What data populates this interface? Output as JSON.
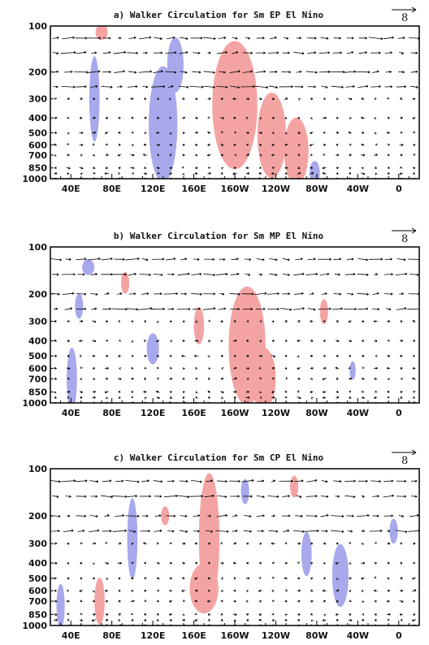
{
  "chart_data": [
    {
      "type": "vector-contour",
      "title": "a) Walker Circulation for Sm EP El Nino",
      "reference_vector": "8",
      "x_tick_labels": [
        "40E",
        "80E",
        "120E",
        "160E",
        "160W",
        "120W",
        "80W",
        "40W",
        "0"
      ],
      "x_tick_lon": [
        40,
        80,
        120,
        160,
        200,
        240,
        280,
        320,
        360
      ],
      "xlim": [
        20,
        380
      ],
      "y_tick_labels": [
        "100",
        "200",
        "300",
        "400",
        "500",
        "600",
        "700",
        "850",
        "1000"
      ],
      "y_tick_hpa": [
        100,
        200,
        300,
        400,
        500,
        600,
        700,
        850,
        1000
      ],
      "ylim": [
        100,
        1000
      ],
      "y_scale": "log",
      "shading": {
        "positive": [
          {
            "lon": 200,
            "p": 330,
            "wlon": 22,
            "wlogp": 0.42
          },
          {
            "lon": 236,
            "p": 520,
            "wlon": 14,
            "wlogp": 0.28
          },
          {
            "lon": 260,
            "p": 660,
            "wlon": 12,
            "wlogp": 0.22
          },
          {
            "lon": 70,
            "p": 110,
            "wlon": 6,
            "wlogp": 0.05
          }
        ],
        "negative": [
          {
            "lon": 130,
            "p": 440,
            "wlon": 14,
            "wlogp": 0.38
          },
          {
            "lon": 142,
            "p": 180,
            "wlon": 8,
            "wlogp": 0.18
          },
          {
            "lon": 63,
            "p": 300,
            "wlon": 5,
            "wlogp": 0.28
          },
          {
            "lon": 278,
            "p": 920,
            "wlon": 5,
            "wlogp": 0.08
          }
        ]
      },
      "colors": {
        "positive": "#f4a3a3",
        "negative": "#a8a8ec",
        "vectors": "#000000"
      }
    },
    {
      "type": "vector-contour",
      "title": "b) Walker Circulation for Sm MP El Nino",
      "reference_vector": "8",
      "x_tick_labels": [
        "40E",
        "80E",
        "120E",
        "160E",
        "160W",
        "120W",
        "80W",
        "40W",
        "0"
      ],
      "x_tick_lon": [
        40,
        80,
        120,
        160,
        200,
        240,
        280,
        320,
        360
      ],
      "xlim": [
        20,
        380
      ],
      "y_tick_labels": [
        "100",
        "200",
        "300",
        "400",
        "500",
        "600",
        "700",
        "850",
        "1000"
      ],
      "y_tick_hpa": [
        100,
        200,
        300,
        400,
        500,
        600,
        700,
        850,
        1000
      ],
      "ylim": [
        100,
        1000
      ],
      "y_scale": "log",
      "shading": {
        "positive": [
          {
            "lon": 212,
            "p": 430,
            "wlon": 18,
            "wlogp": 0.38
          },
          {
            "lon": 228,
            "p": 700,
            "wlon": 12,
            "wlogp": 0.2
          },
          {
            "lon": 165,
            "p": 320,
            "wlon": 5,
            "wlogp": 0.12
          },
          {
            "lon": 287,
            "p": 260,
            "wlon": 4,
            "wlogp": 0.08
          },
          {
            "lon": 93,
            "p": 170,
            "wlon": 4,
            "wlogp": 0.07
          }
        ],
        "negative": [
          {
            "lon": 57,
            "p": 135,
            "wlon": 6,
            "wlogp": 0.05
          },
          {
            "lon": 41,
            "p": 700,
            "wlon": 5,
            "wlogp": 0.2
          },
          {
            "lon": 120,
            "p": 450,
            "wlon": 6,
            "wlogp": 0.1
          },
          {
            "lon": 48,
            "p": 240,
            "wlon": 4,
            "wlogp": 0.08
          },
          {
            "lon": 315,
            "p": 620,
            "wlon": 3,
            "wlogp": 0.06
          }
        ]
      },
      "colors": {
        "positive": "#f4a3a3",
        "negative": "#a8a8ec",
        "vectors": "#000000"
      }
    },
    {
      "type": "vector-contour",
      "title": "c) Walker Circulation for Sm CP El Nino",
      "reference_vector": "8",
      "x_tick_labels": [
        "40E",
        "80E",
        "120E",
        "160E",
        "160W",
        "120W",
        "80W",
        "40W",
        "0"
      ],
      "x_tick_lon": [
        40,
        80,
        120,
        160,
        200,
        240,
        280,
        320,
        360
      ],
      "xlim": [
        20,
        380
      ],
      "y_tick_labels": [
        "100",
        "200",
        "300",
        "400",
        "500",
        "600",
        "700",
        "850",
        "1000"
      ],
      "y_tick_hpa": [
        100,
        200,
        300,
        400,
        500,
        600,
        700,
        850,
        1000
      ],
      "ylim": [
        100,
        1000
      ],
      "y_scale": "log",
      "shading": {
        "positive": [
          {
            "lon": 175,
            "p": 280,
            "wlon": 10,
            "wlogp": 0.42
          },
          {
            "lon": 170,
            "p": 580,
            "wlon": 14,
            "wlogp": 0.16
          },
          {
            "lon": 68,
            "p": 700,
            "wlon": 5,
            "wlogp": 0.15
          },
          {
            "lon": 258,
            "p": 130,
            "wlon": 4,
            "wlogp": 0.07
          },
          {
            "lon": 132,
            "p": 200,
            "wlon": 4,
            "wlogp": 0.06
          }
        ],
        "negative": [
          {
            "lon": 100,
            "p": 280,
            "wlon": 5,
            "wlogp": 0.26
          },
          {
            "lon": 303,
            "p": 480,
            "wlon": 8,
            "wlogp": 0.2
          },
          {
            "lon": 270,
            "p": 350,
            "wlon": 5,
            "wlogp": 0.14
          },
          {
            "lon": 30,
            "p": 750,
            "wlon": 4,
            "wlogp": 0.14
          },
          {
            "lon": 210,
            "p": 140,
            "wlon": 4,
            "wlogp": 0.08
          },
          {
            "lon": 355,
            "p": 250,
            "wlon": 4,
            "wlogp": 0.08
          }
        ]
      },
      "colors": {
        "positive": "#f4a3a3",
        "negative": "#a8a8ec",
        "vectors": "#000000"
      }
    }
  ]
}
